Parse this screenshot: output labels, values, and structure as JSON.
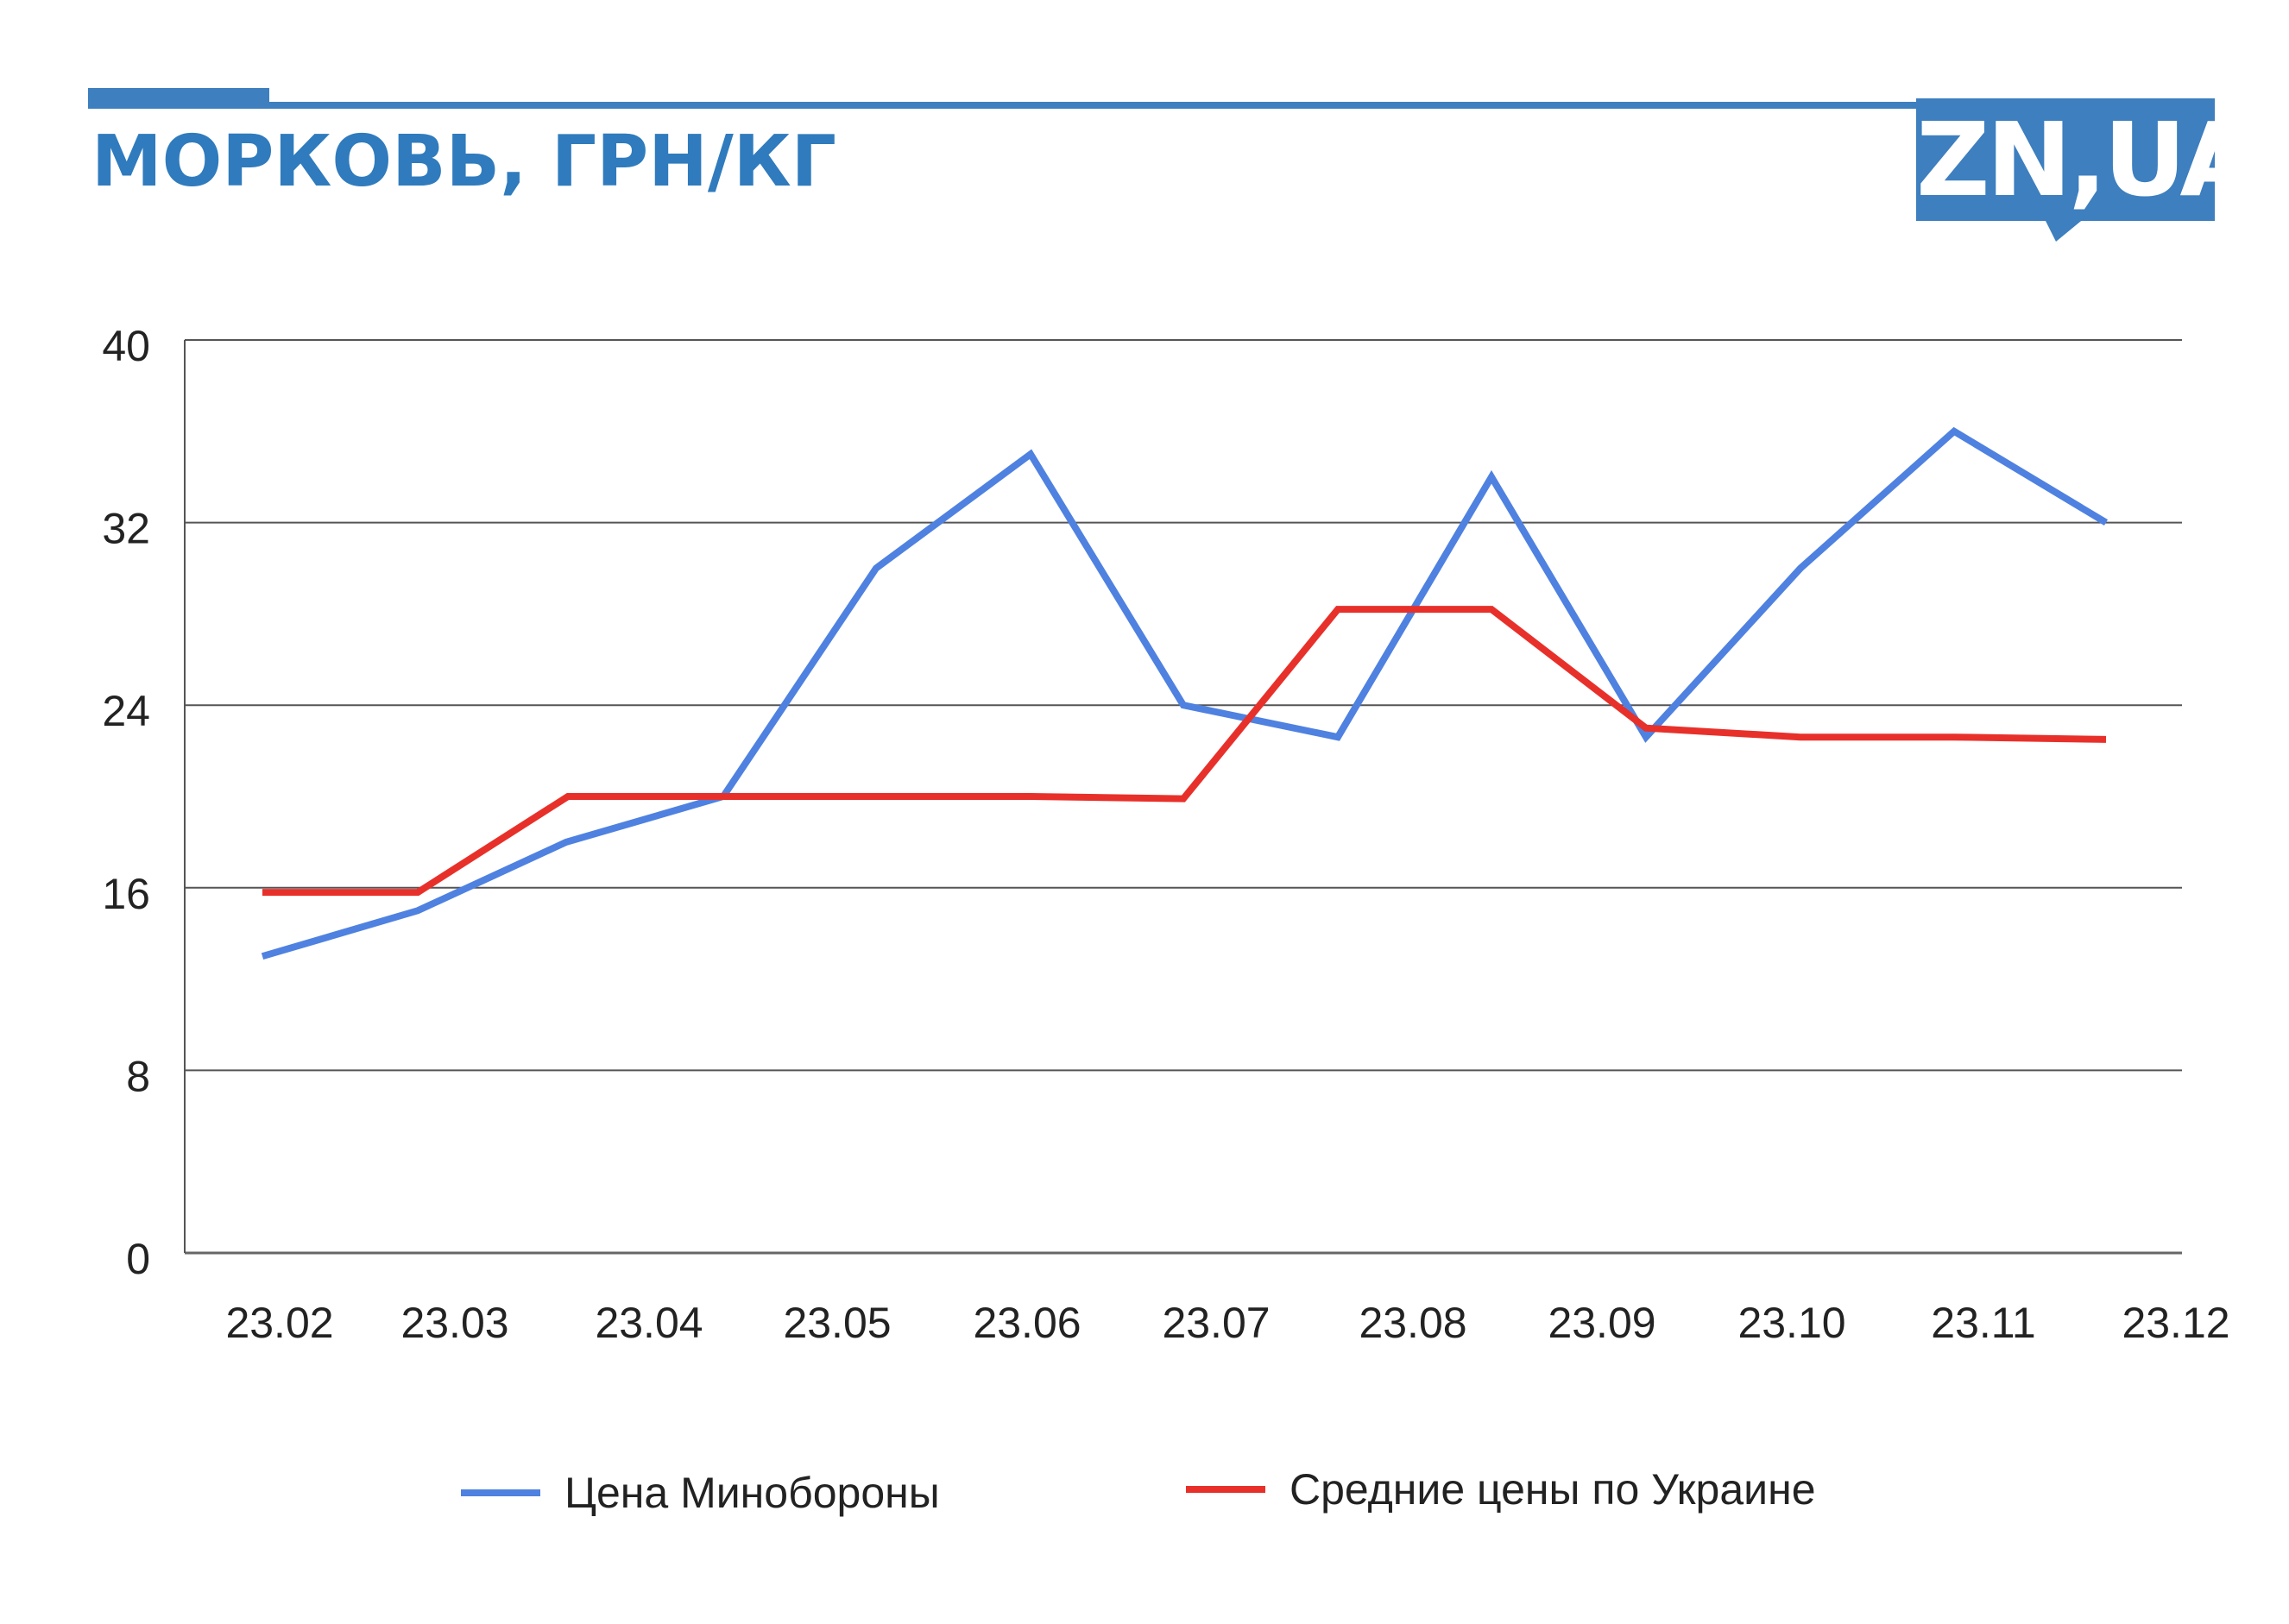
{
  "header": {
    "title": "МОРКОВЬ, ГРН/КГ",
    "logo": "ZN,UA",
    "accent_color": "#3d7fbf"
  },
  "chart_data": {
    "type": "line",
    "title": "МОРКОВЬ, ГРН/КГ",
    "categories": [
      "23.02",
      "23.03",
      "23.04",
      "23.05",
      "23.06",
      "23.07",
      "23.08",
      "23.09",
      "23.10",
      "23.11",
      "23.12"
    ],
    "ylim": [
      0,
      40
    ],
    "yticks": [
      0,
      8,
      16,
      24,
      32,
      40
    ],
    "grid": true,
    "legend_position": "bottom",
    "series": [
      {
        "name": "Цена Минобороны",
        "color": "#4f81e0",
        "points": [
          {
            "x": "23.02",
            "y": 13.0
          },
          {
            "x": "23.03",
            "y": 15.0
          },
          {
            "x": "23.04",
            "y": 18.0
          },
          {
            "x": "23.04",
            "y": 20.0
          },
          {
            "x": "23.05",
            "y": 30.0
          },
          {
            "x": "23.06",
            "y": 35.0
          },
          {
            "x": "23.07",
            "y": 24.0
          },
          {
            "x": "23.08",
            "y": 22.6
          },
          {
            "x": "23.08",
            "y": 34.0
          },
          {
            "x": "23.09",
            "y": 22.6
          },
          {
            "x": "23.10",
            "y": 30.0
          },
          {
            "x": "23.11",
            "y": 36.0
          },
          {
            "x": "23.12",
            "y": 32.0
          }
        ]
      },
      {
        "name": "Средние цены по Украине",
        "color": "#e8302a",
        "points": [
          {
            "x": "23.02",
            "y": 15.8
          },
          {
            "x": "23.03",
            "y": 15.8
          },
          {
            "x": "23.04",
            "y": 20.0
          },
          {
            "x": "23.04",
            "y": 20.0
          },
          {
            "x": "23.05",
            "y": 20.0
          },
          {
            "x": "23.06",
            "y": 20.0
          },
          {
            "x": "23.07",
            "y": 19.9
          },
          {
            "x": "23.08",
            "y": 28.2
          },
          {
            "x": "23.08",
            "y": 28.2
          },
          {
            "x": "23.09",
            "y": 23.0
          },
          {
            "x": "23.10",
            "y": 22.6
          },
          {
            "x": "23.11",
            "y": 22.6
          },
          {
            "x": "23.12",
            "y": 22.5
          }
        ]
      }
    ]
  }
}
